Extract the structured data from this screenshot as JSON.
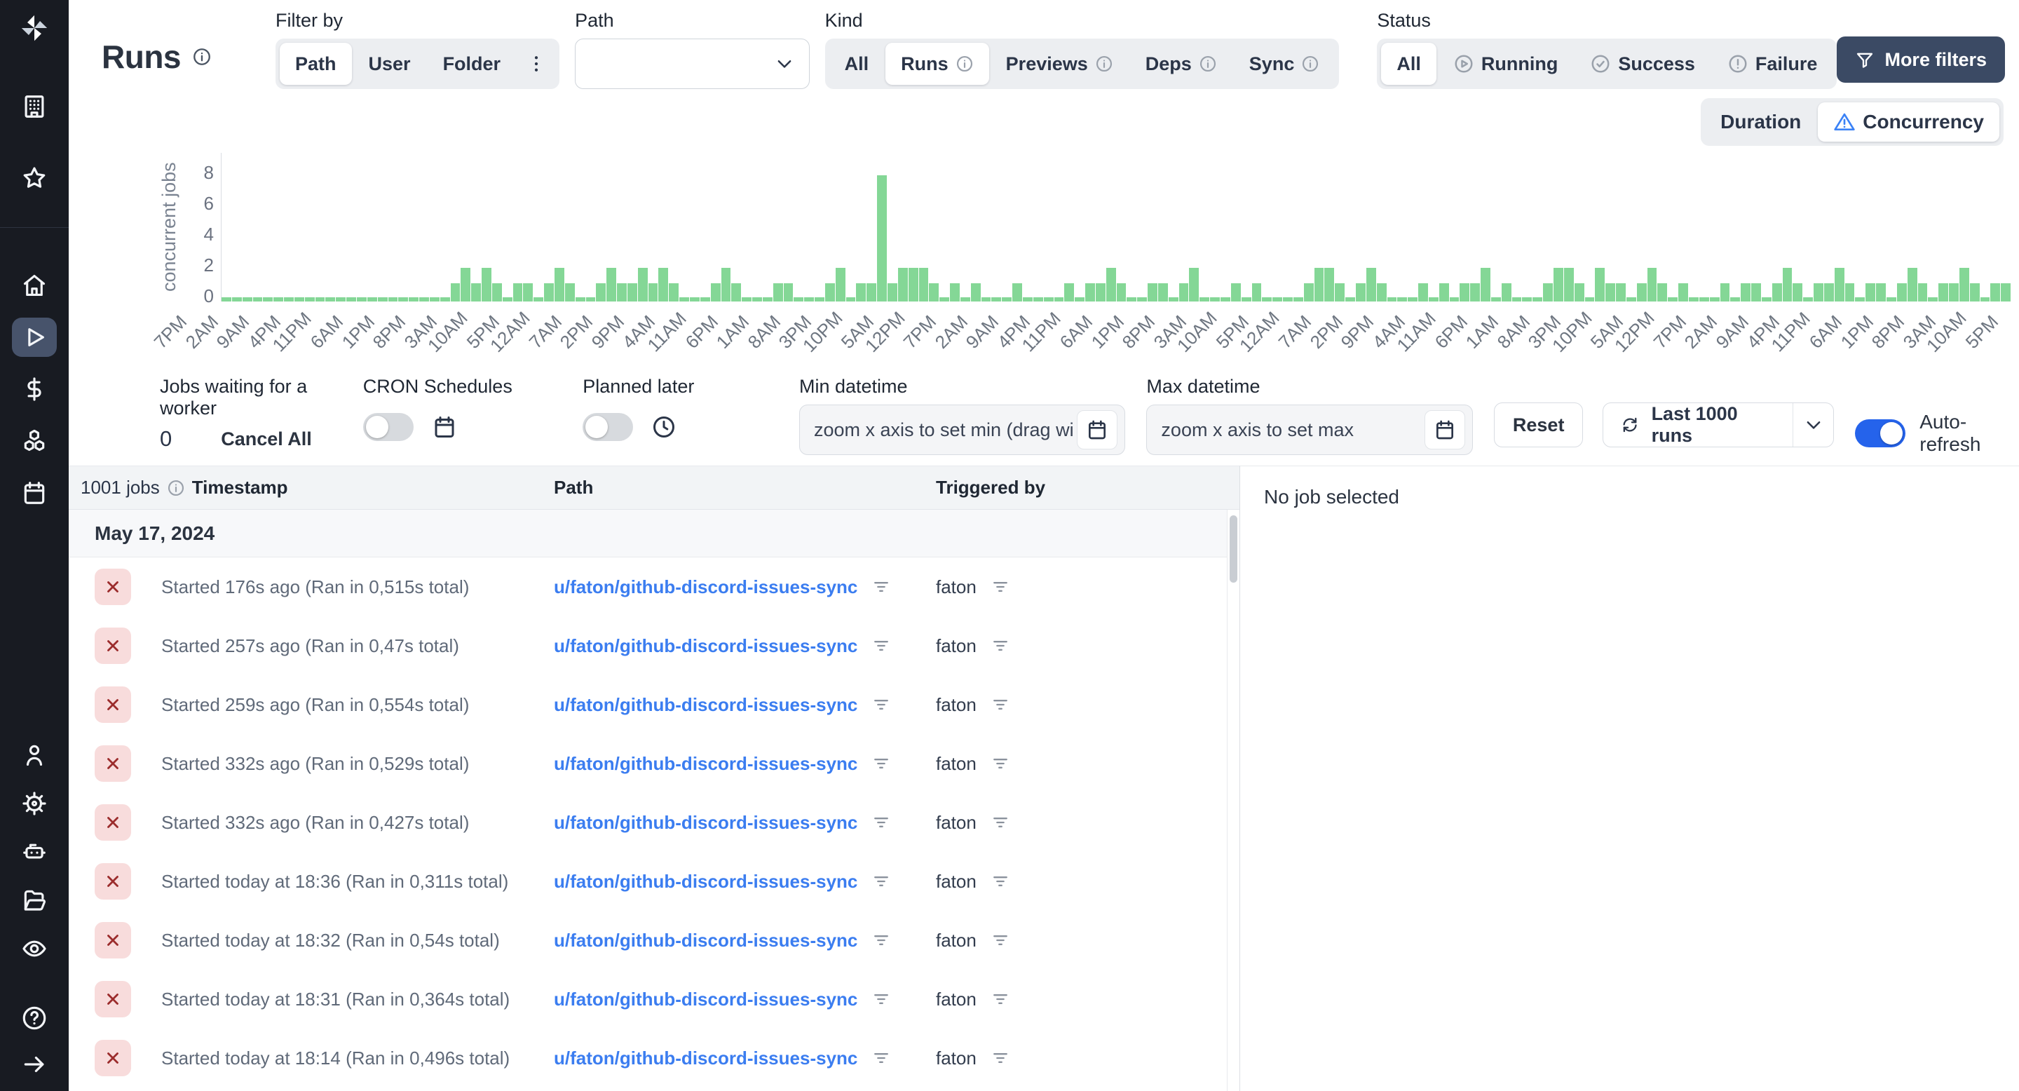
{
  "colors": {
    "green": "#84d796",
    "link": "#3b7df0",
    "toggle_on": "#2563eb",
    "fail_bg": "#f8dcdc",
    "fail_fg": "#9b2c2c",
    "dark_btn": "#3b4a64"
  },
  "header": {
    "title": "Runs"
  },
  "sidebar": {
    "top": [
      {
        "icon": "building",
        "name": "nav-workspace"
      },
      {
        "icon": "star",
        "name": "nav-favorites"
      }
    ],
    "main": [
      {
        "icon": "home",
        "name": "nav-home"
      },
      {
        "icon": "play",
        "name": "nav-runs",
        "active": true
      },
      {
        "icon": "dollar",
        "name": "nav-variables"
      },
      {
        "icon": "cubes",
        "name": "nav-resources"
      },
      {
        "icon": "calendar",
        "name": "nav-schedules"
      }
    ],
    "secondary": [
      {
        "icon": "user",
        "name": "nav-users"
      },
      {
        "icon": "gear",
        "name": "nav-settings"
      },
      {
        "icon": "robot",
        "name": "nav-workers"
      },
      {
        "icon": "folder",
        "name": "nav-folders"
      },
      {
        "icon": "eye",
        "name": "nav-audit-logs"
      }
    ],
    "bottom": [
      {
        "icon": "help",
        "name": "nav-help"
      },
      {
        "icon": "arrow-right",
        "name": "nav-collapse"
      }
    ]
  },
  "filter_by": {
    "label": "Filter by",
    "options": [
      "Path",
      "User",
      "Folder"
    ],
    "selected": "Path"
  },
  "path_filter": {
    "label": "Path",
    "value": "",
    "icon": "chevron-down"
  },
  "kind": {
    "label": "Kind",
    "options": [
      {
        "label": "All",
        "selected": false,
        "info": false
      },
      {
        "label": "Runs",
        "selected": true,
        "info": true
      },
      {
        "label": "Previews",
        "selected": false,
        "info": true
      },
      {
        "label": "Deps",
        "selected": false,
        "info": true
      },
      {
        "label": "Sync",
        "selected": false,
        "info": true
      }
    ]
  },
  "status": {
    "label": "Status",
    "options": [
      {
        "label": "All",
        "selected": true,
        "icon": ""
      },
      {
        "label": "Running",
        "selected": false,
        "icon": "play-circle"
      },
      {
        "label": "Success",
        "selected": false,
        "icon": "check-circle"
      },
      {
        "label": "Failure",
        "selected": false,
        "icon": "alert-circle"
      }
    ]
  },
  "more_filters": {
    "label": "More filters",
    "icon": "funnel"
  },
  "view_toggle": {
    "options": [
      {
        "label": "Duration",
        "selected": false,
        "icon": ""
      },
      {
        "label": "Concurrency",
        "selected": true,
        "icon": "warning-triangle"
      }
    ]
  },
  "chart_data": {
    "type": "bar",
    "title": "",
    "xlabel": "",
    "ylabel": "concurrent jobs",
    "ylim": [
      0,
      8
    ],
    "yticks": [
      0,
      2,
      4,
      6,
      8
    ],
    "grid": false,
    "bar_color": "#84d796",
    "x_labels": [
      "7PM",
      "2AM",
      "9AM",
      "4PM",
      "11PM",
      "6AM",
      "1PM",
      "8PM",
      "3AM",
      "10AM",
      "5PM",
      "12AM",
      "7AM",
      "2PM",
      "9PM",
      "4AM",
      "11AM",
      "6PM",
      "1AM",
      "8AM",
      "3PM",
      "10PM",
      "5AM",
      "12PM",
      "7PM",
      "2AM",
      "9AM",
      "4PM",
      "11PM",
      "6AM",
      "1PM",
      "8PM",
      "3AM",
      "10AM",
      "5PM",
      "12AM",
      "7AM",
      "2PM",
      "9PM",
      "4AM",
      "11AM",
      "6PM",
      "1AM",
      "8AM",
      "3PM",
      "10PM",
      "5AM",
      "12PM",
      "7PM",
      "2AM",
      "9AM",
      "4PM",
      "11PM",
      "6AM",
      "1PM",
      "8PM",
      "3AM",
      "10AM",
      "5PM"
    ],
    "values": [
      0,
      0,
      0,
      0,
      0,
      0,
      0,
      0,
      0,
      0,
      0,
      0,
      0,
      0,
      0,
      0,
      0,
      0,
      0,
      0,
      0,
      0,
      1,
      2,
      1,
      2,
      1,
      0,
      1,
      1,
      0,
      1,
      2,
      1,
      0,
      0,
      1,
      2,
      1,
      1,
      2,
      1,
      2,
      1,
      0,
      0,
      0,
      1,
      2,
      1,
      0,
      0,
      0,
      1,
      1,
      0,
      0,
      0,
      1,
      2,
      0,
      1,
      1,
      8,
      1,
      2,
      2,
      2,
      1,
      0,
      1,
      0,
      1,
      0,
      0,
      0,
      1,
      0,
      0,
      0,
      0,
      1,
      0,
      1,
      1,
      2,
      1,
      0,
      0,
      1,
      1,
      0,
      1,
      2,
      0,
      0,
      0,
      1,
      0,
      1,
      0,
      0,
      0,
      0,
      1,
      2,
      2,
      1,
      0,
      1,
      2,
      1,
      0,
      0,
      0,
      1,
      0,
      1,
      0,
      1,
      1,
      2,
      0,
      1,
      0,
      0,
      0,
      1,
      2,
      2,
      1,
      0,
      2,
      1,
      1,
      0,
      1,
      2,
      1,
      0,
      1,
      0,
      0,
      0,
      1,
      0,
      1,
      1,
      0,
      1,
      2,
      1,
      0,
      1,
      1,
      2,
      1,
      0,
      1,
      1,
      0,
      1,
      2,
      1,
      0,
      1,
      1,
      2,
      1,
      0,
      1,
      1
    ]
  },
  "controls": {
    "waiting": {
      "label": "Jobs waiting for a worker",
      "count": "0",
      "cancel_label": "Cancel All"
    },
    "cron": {
      "label": "CRON Schedules",
      "enabled": false,
      "icon": "calendar"
    },
    "planned": {
      "label": "Planned later",
      "enabled": false,
      "icon": "clock"
    },
    "min_dt": {
      "label": "Min datetime",
      "placeholder": "zoom x axis to set min (drag wi",
      "icon": "calendar"
    },
    "max_dt": {
      "label": "Max datetime",
      "placeholder": "zoom x axis to set max",
      "icon": "calendar"
    },
    "reset": {
      "label": "Reset"
    },
    "runs_select": {
      "label": "Last 1000 runs",
      "icon": "refresh"
    },
    "auto_refresh": {
      "label": "Auto-refresh",
      "enabled": true
    }
  },
  "table": {
    "jobs_count": "1001 jobs",
    "columns": [
      "Timestamp",
      "Path",
      "Triggered by"
    ],
    "date_group": "May 17, 2024",
    "rows": [
      {
        "status": "failure",
        "timestamp": "Started 176s ago (Ran in 0,515s total)",
        "path": "u/faton/github-discord-issues-sync",
        "triggered_by": "faton"
      },
      {
        "status": "failure",
        "timestamp": "Started 257s ago (Ran in 0,47s total)",
        "path": "u/faton/github-discord-issues-sync",
        "triggered_by": "faton"
      },
      {
        "status": "failure",
        "timestamp": "Started 259s ago (Ran in 0,554s total)",
        "path": "u/faton/github-discord-issues-sync",
        "triggered_by": "faton"
      },
      {
        "status": "failure",
        "timestamp": "Started 332s ago (Ran in 0,529s total)",
        "path": "u/faton/github-discord-issues-sync",
        "triggered_by": "faton"
      },
      {
        "status": "failure",
        "timestamp": "Started 332s ago (Ran in 0,427s total)",
        "path": "u/faton/github-discord-issues-sync",
        "triggered_by": "faton"
      },
      {
        "status": "failure",
        "timestamp": "Started today at 18:36 (Ran in 0,311s total)",
        "path": "u/faton/github-discord-issues-sync",
        "triggered_by": "faton"
      },
      {
        "status": "failure",
        "timestamp": "Started today at 18:32 (Ran in 0,54s total)",
        "path": "u/faton/github-discord-issues-sync",
        "triggered_by": "faton"
      },
      {
        "status": "failure",
        "timestamp": "Started today at 18:31 (Ran in 0,364s total)",
        "path": "u/faton/github-discord-issues-sync",
        "triggered_by": "faton"
      },
      {
        "status": "failure",
        "timestamp": "Started today at 18:14 (Ran in 0,496s total)",
        "path": "u/faton/github-discord-issues-sync",
        "triggered_by": "faton"
      }
    ]
  },
  "detail": {
    "empty_text": "No job selected"
  }
}
